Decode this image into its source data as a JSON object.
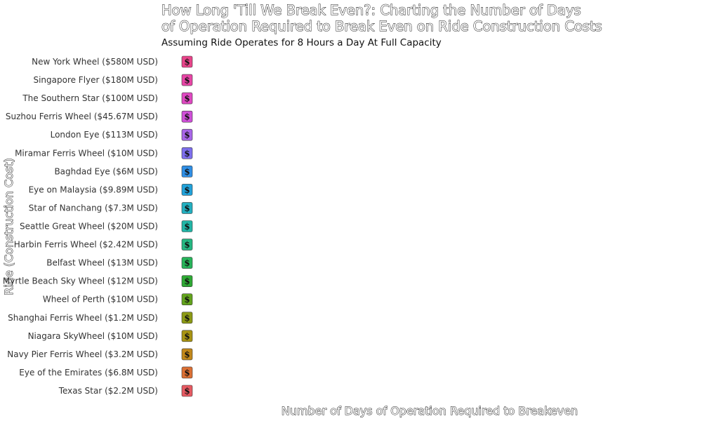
{
  "chart_data": {
    "type": "bar",
    "title": "How Long 'Till We Break Even?: Charting the Number of Days of Operation Required to Break Even on Ride Construction Costs",
    "title_lines": [
      "How Long 'Till We Break Even?: Charting the Number of Days",
      "of Operation Required to Break Even on Ride Construction Costs"
    ],
    "subtitle": "Assuming Ride Operates for 8 Hours a Day At Full Capacity",
    "xlabel": "Number of Days of Operation Required to Breakeven",
    "ylabel": "Ride (Construction Cost)",
    "orientation": "horizontal",
    "bar_glyph": "$",
    "grid": false,
    "legend": "none",
    "categories": [
      "New York Wheel ($580M USD)",
      "Singapore Flyer ($180M USD)",
      "The Southern Star ($100M USD)",
      "Suzhou Ferris Wheel ($45.67M USD)",
      "London Eye ($113M USD)",
      "Miramar Ferris Wheel ($10M USD)",
      "Baghdad Eye ($6M USD)",
      "Eye on Malaysia  ($9.89M USD)",
      "Star of Nanchang ($7.3M USD)",
      "Seattle Great Wheel ($20M USD)",
      "Harbin Ferris Wheel ($2.42M USD)",
      "Belfast Wheel ($13M USD)",
      "Myrtle Beach Sky Wheel ($12M USD)",
      "Wheel of Perth ($10M USD)",
      "Shanghai Ferris Wheel ($1.2M USD)",
      "Niagara SkyWheel ($10M USD)",
      "Navy Pier Ferris Wheel ($3.2M USD)",
      "Eye of the Emirates ($6.8M USD)",
      "Texas Star ($2.2M USD)"
    ],
    "values": [
      1,
      1,
      1,
      1,
      1,
      1,
      1,
      1,
      1,
      1,
      1,
      1,
      1,
      1,
      1,
      1,
      1,
      1,
      1
    ],
    "colors": [
      "#e8448a",
      "#e845a6",
      "#e048c2",
      "#cf4fd8",
      "#a866e8",
      "#7e6fee",
      "#2f8fe6",
      "#21a2da",
      "#22afc0",
      "#21b5a6",
      "#24b782",
      "#27b45a",
      "#2ea934",
      "#62a31c",
      "#8c9a14",
      "#a89412",
      "#c2881a",
      "#dc7034",
      "#e65a62"
    ]
  }
}
